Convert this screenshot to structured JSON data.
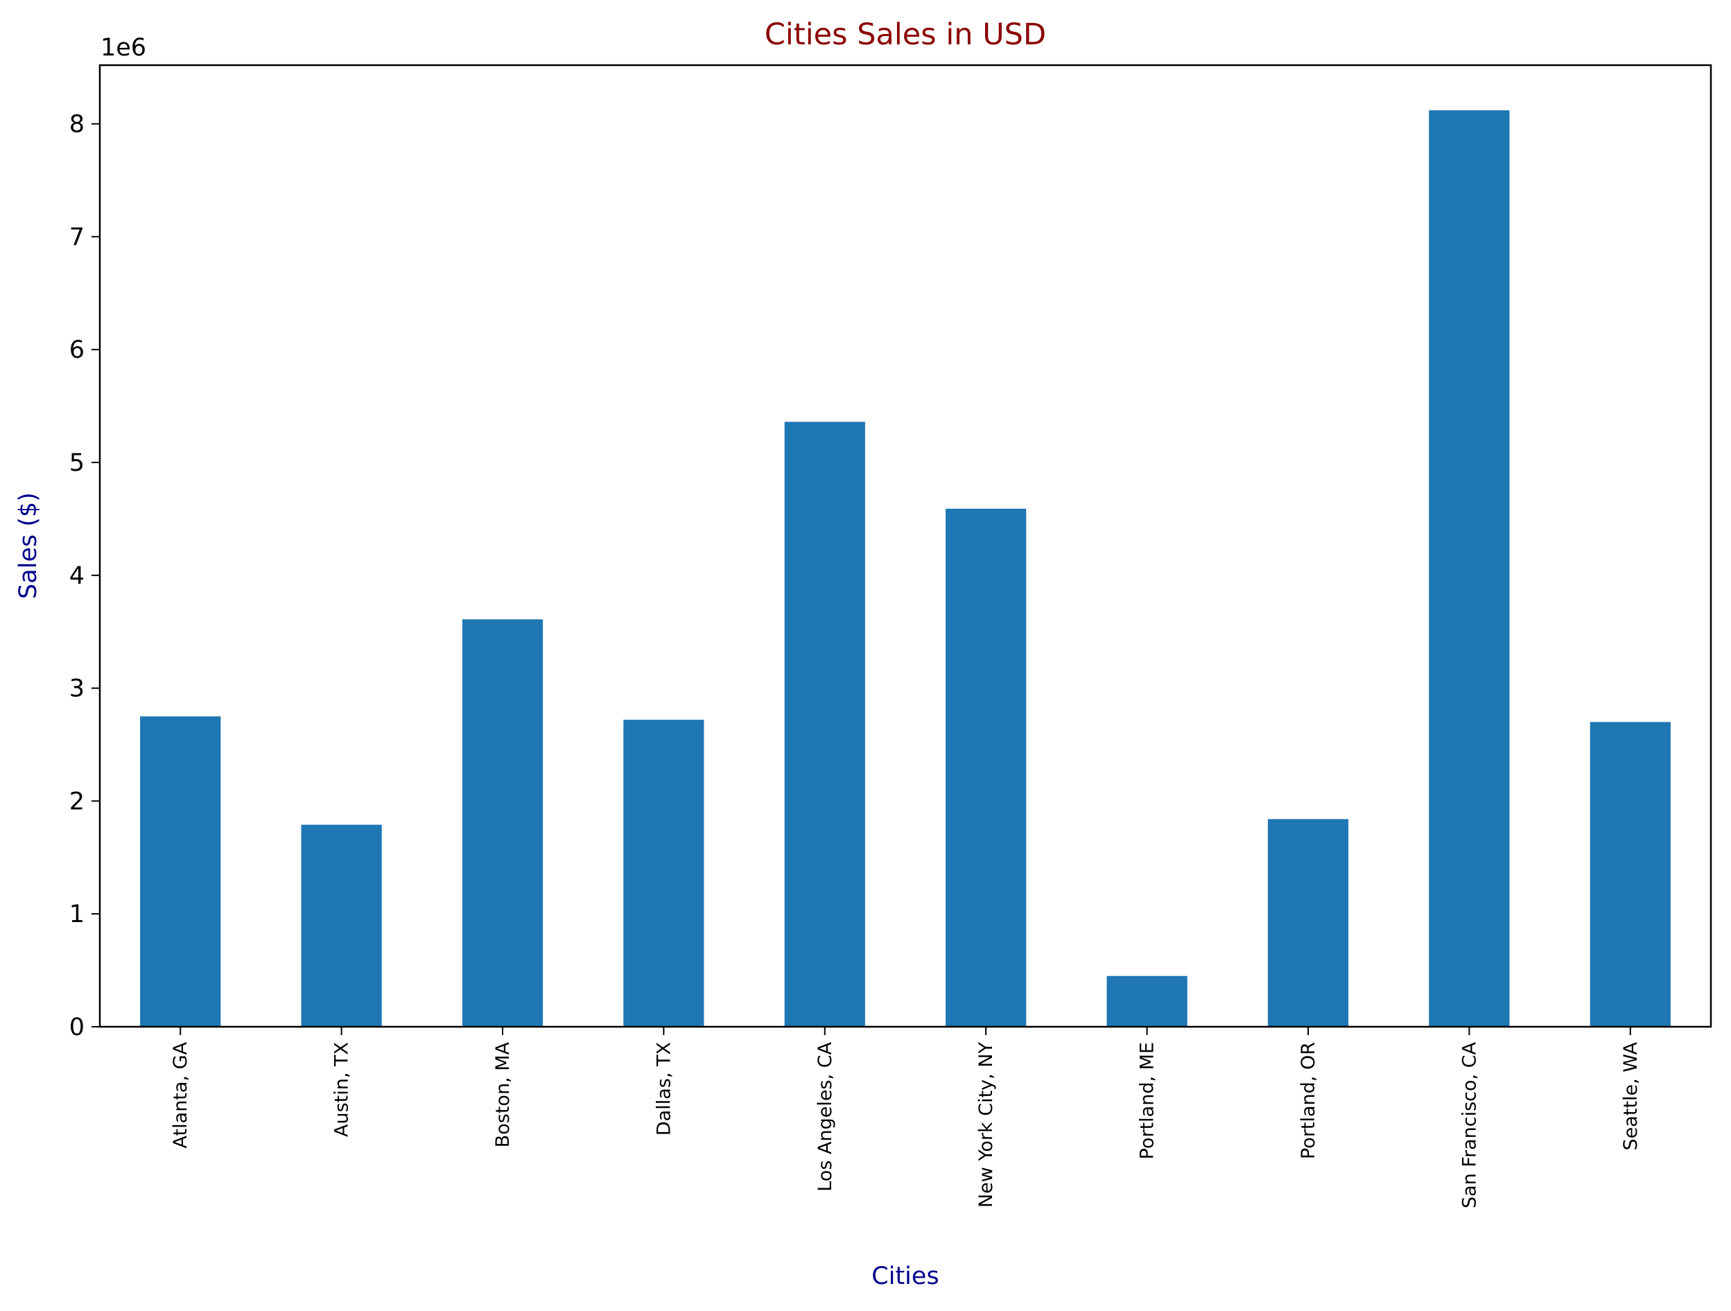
{
  "chart_data": {
    "type": "bar",
    "title": "Cities Sales in USD",
    "xlabel": "Cities",
    "ylabel": "Sales ($)",
    "y_offset_label": "1e6",
    "categories": [
      "Atlanta, GA",
      "Austin, TX",
      "Boston, MA",
      "Dallas, TX",
      "Los Angeles, CA",
      "New York City, NY",
      "Portland, ME",
      "Portland, OR",
      "San Francisco, CA",
      "Seattle, WA"
    ],
    "values": [
      2750000,
      1790000,
      3610000,
      2720000,
      5360000,
      4590000,
      450000,
      1840000,
      8120000,
      2700000
    ],
    "ylim": [
      0,
      8520000
    ],
    "yticks": [
      0,
      1,
      2,
      3,
      4,
      5,
      6,
      7,
      8
    ],
    "grid": false,
    "legend": "none",
    "colors": {
      "bar": "#1f77b4",
      "title": "#8b0000",
      "axis_label": "#00008b",
      "axes": "#000000"
    }
  }
}
